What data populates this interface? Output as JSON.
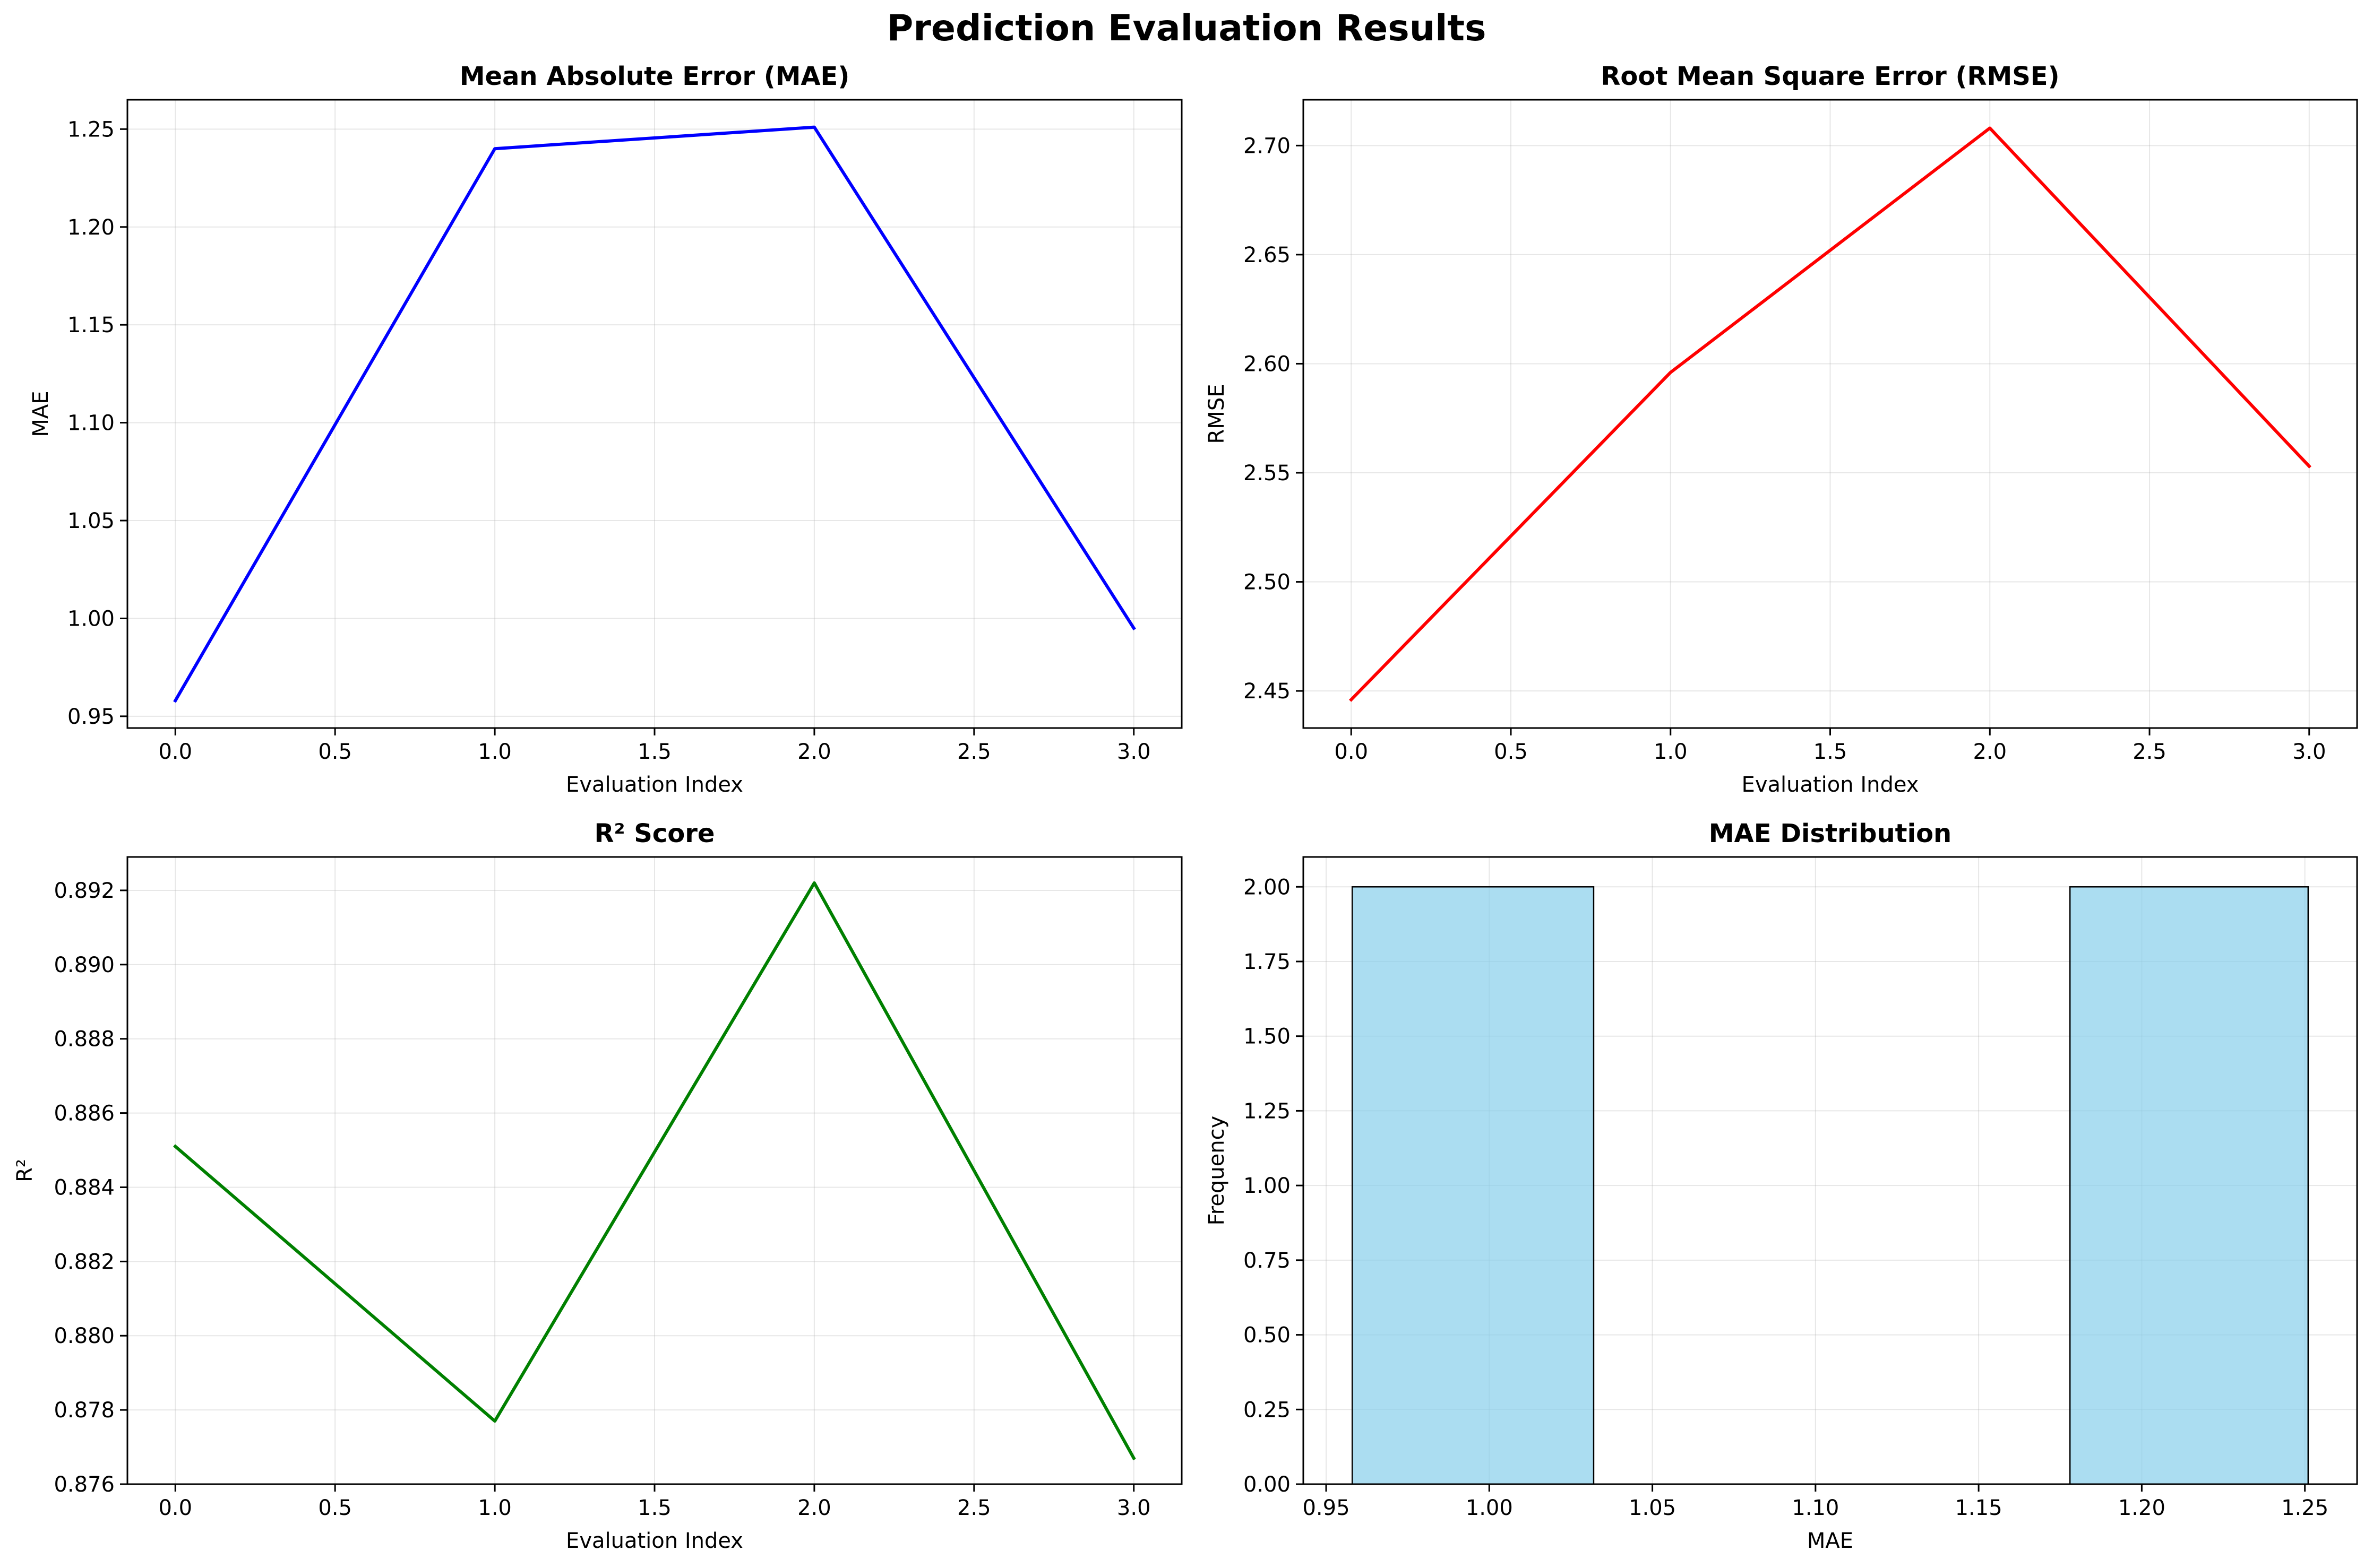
{
  "figure": {
    "title": "Prediction Evaluation Results"
  },
  "chart_data": [
    {
      "type": "line",
      "title": "Mean Absolute Error (MAE)",
      "xlabel": "Evaluation Index",
      "ylabel": "MAE",
      "x": [
        0,
        1,
        2,
        3
      ],
      "series": [
        {
          "values": [
            0.958,
            1.24,
            1.251,
            0.995
          ],
          "color": "#0000ff"
        }
      ],
      "xlim": [
        -0.15,
        3.15
      ],
      "ylim": [
        0.944,
        1.265
      ],
      "xticks": [
        0,
        0.5,
        1,
        1.5,
        2,
        2.5,
        3
      ],
      "xtick_labels": [
        "0.0",
        "0.5",
        "1.0",
        "1.5",
        "2.0",
        "2.5",
        "3.0"
      ],
      "yticks": [
        0.95,
        1.0,
        1.05,
        1.1,
        1.15,
        1.2,
        1.25
      ],
      "ytick_labels": [
        "0.95",
        "1.00",
        "1.05",
        "1.10",
        "1.15",
        "1.20",
        "1.25"
      ],
      "grid": true
    },
    {
      "type": "line",
      "title": "Root Mean Square Error (RMSE)",
      "xlabel": "Evaluation Index",
      "ylabel": "RMSE",
      "x": [
        0,
        1,
        2,
        3
      ],
      "series": [
        {
          "values": [
            2.446,
            2.596,
            2.708,
            2.553
          ],
          "color": "#ff0000"
        }
      ],
      "xlim": [
        -0.15,
        3.15
      ],
      "ylim": [
        2.433,
        2.721
      ],
      "xticks": [
        0,
        0.5,
        1,
        1.5,
        2,
        2.5,
        3
      ],
      "xtick_labels": [
        "0.0",
        "0.5",
        "1.0",
        "1.5",
        "2.0",
        "2.5",
        "3.0"
      ],
      "yticks": [
        2.45,
        2.5,
        2.55,
        2.6,
        2.65,
        2.7
      ],
      "ytick_labels": [
        "2.45",
        "2.50",
        "2.55",
        "2.60",
        "2.65",
        "2.70"
      ],
      "grid": true
    },
    {
      "type": "line",
      "title": "R² Score",
      "xlabel": "Evaluation Index",
      "ylabel": "R²",
      "x": [
        0,
        1,
        2,
        3
      ],
      "series": [
        {
          "values": [
            0.8851,
            0.8777,
            0.8922,
            0.8767
          ],
          "color": "#008000"
        }
      ],
      "xlim": [
        -0.15,
        3.15
      ],
      "ylim": [
        0.876,
        0.8929
      ],
      "xticks": [
        0,
        0.5,
        1,
        1.5,
        2,
        2.5,
        3
      ],
      "xtick_labels": [
        "0.0",
        "0.5",
        "1.0",
        "1.5",
        "2.0",
        "2.5",
        "3.0"
      ],
      "yticks": [
        0.876,
        0.878,
        0.88,
        0.882,
        0.884,
        0.886,
        0.888,
        0.89,
        0.892
      ],
      "ytick_labels": [
        "0.876",
        "0.878",
        "0.880",
        "0.882",
        "0.884",
        "0.886",
        "0.888",
        "0.890",
        "0.892"
      ],
      "grid": true
    },
    {
      "type": "bar",
      "title": "MAE Distribution",
      "xlabel": "MAE",
      "ylabel": "Frequency",
      "bins": [
        {
          "x0": 0.958,
          "x1": 1.032,
          "count": 2
        },
        {
          "x0": 1.032,
          "x1": 1.105,
          "count": 0
        },
        {
          "x0": 1.105,
          "x1": 1.178,
          "count": 0
        },
        {
          "x0": 1.178,
          "x1": 1.251,
          "count": 2
        }
      ],
      "color": "#87ceeb",
      "edge_color": "#000000",
      "xlim": [
        0.943,
        1.266
      ],
      "ylim": [
        0,
        2.1
      ],
      "xticks": [
        0.95,
        1.0,
        1.05,
        1.1,
        1.15,
        1.2,
        1.25
      ],
      "xtick_labels": [
        "0.95",
        "1.00",
        "1.05",
        "1.10",
        "1.15",
        "1.20",
        "1.25"
      ],
      "yticks": [
        0,
        0.25,
        0.5,
        0.75,
        1.0,
        1.25,
        1.5,
        1.75,
        2.0
      ],
      "ytick_labels": [
        "0.00",
        "0.25",
        "0.50",
        "0.75",
        "1.00",
        "1.25",
        "1.50",
        "1.75",
        "2.00"
      ],
      "grid": true
    }
  ]
}
